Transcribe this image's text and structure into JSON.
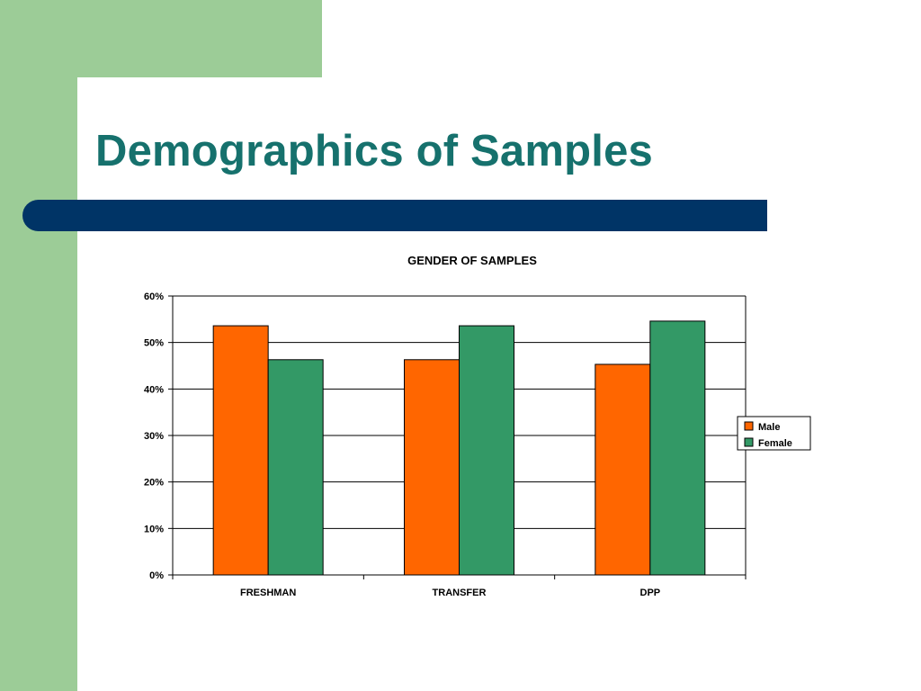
{
  "slide": {
    "title": "Demographics of Samples"
  },
  "colors": {
    "title_text": "#16716d",
    "title_bar": "#003466",
    "side_green": "#9ccc97",
    "male": "#ff6600",
    "female": "#339966"
  },
  "chart_data": {
    "type": "bar",
    "title": "GENDER OF SAMPLES",
    "categories": [
      "FRESHMAN",
      "TRANSFER",
      "DPP"
    ],
    "series": [
      {
        "name": "Male",
        "values": [
          53.6,
          46.3,
          45.3
        ]
      },
      {
        "name": "Female",
        "values": [
          46.3,
          53.6,
          54.6
        ]
      }
    ],
    "yticks": [
      "0%",
      "10%",
      "20%",
      "30%",
      "40%",
      "50%",
      "60%"
    ],
    "ylim": [
      0,
      60
    ],
    "ylabel": "",
    "xlabel": "",
    "grid": true,
    "legend": "right"
  }
}
